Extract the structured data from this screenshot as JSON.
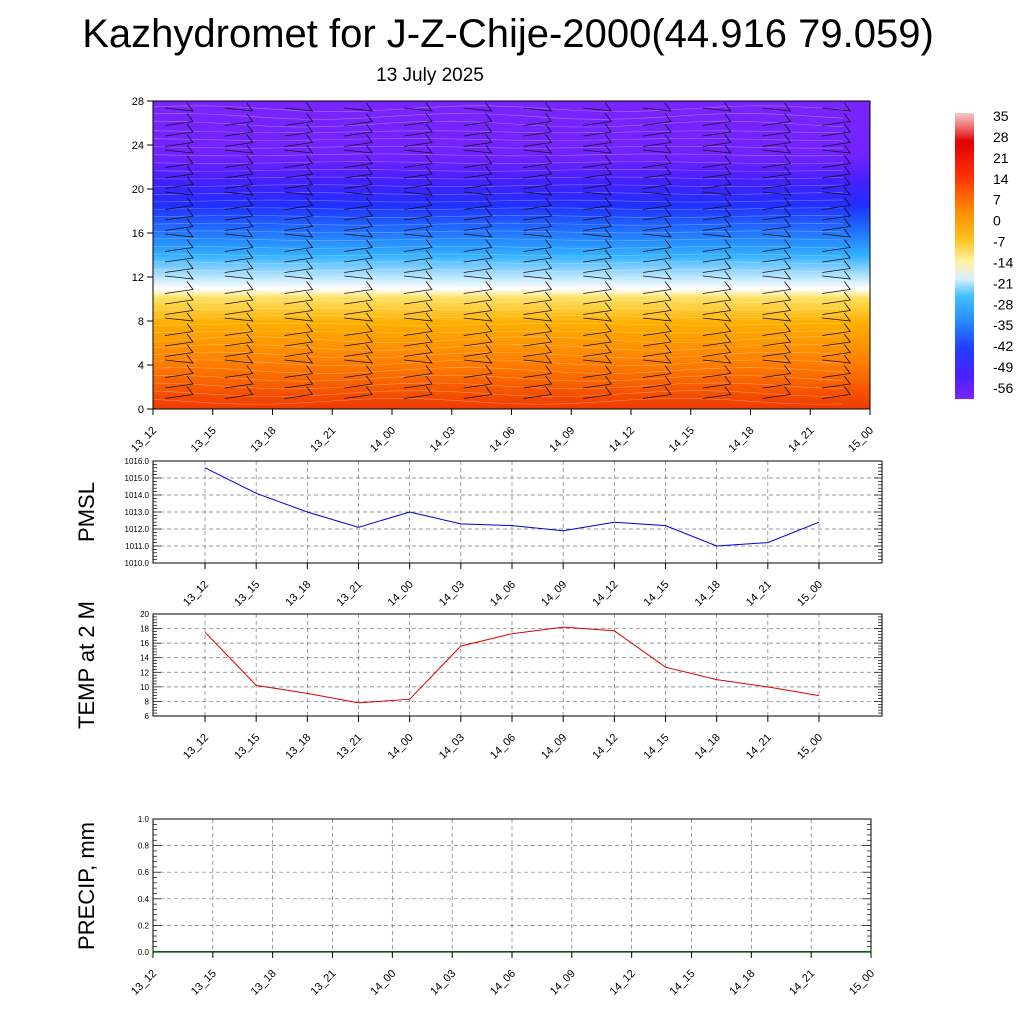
{
  "title": "Kazhydromet for J-Z-Chije-2000(44.916 79.059)",
  "subtitle": "13 July 2025",
  "colors": {
    "pmsl_line": "#0000dd",
    "temp_line": "#dd0000",
    "precip_line": "#006400"
  },
  "colorbar": {
    "labels": [
      "35",
      "28",
      "21",
      "14",
      "7",
      "0",
      "-7",
      "-14",
      "-21",
      "-28",
      "-35",
      "-42",
      "-49",
      "-56"
    ]
  },
  "chart_data": [
    {
      "type": "heatmap",
      "name": "upper-air-temperature-wind",
      "x_ticks": [
        "13_12",
        "13_15",
        "13_18",
        "13_21",
        "14_00",
        "14_03",
        "14_06",
        "14_09",
        "14_12",
        "14_15",
        "14_18",
        "14_21",
        "15_00"
      ],
      "y_ticks": [
        "0",
        "4",
        "8",
        "12",
        "16",
        "20",
        "24",
        "28"
      ],
      "ylim": [
        0,
        28
      ],
      "levels": [
        0,
        4,
        8,
        12,
        16,
        20,
        24,
        28
      ],
      "temperature_by_level": [
        28,
        20,
        10,
        -5,
        -30,
        -50,
        -58,
        -58
      ],
      "wind_barbs": true
    },
    {
      "type": "line",
      "ylabel": "PMSL",
      "x_ticks": [
        "13_12",
        "13_15",
        "13_18",
        "13_21",
        "14_00",
        "14_03",
        "14_06",
        "14_09",
        "14_12",
        "14_15",
        "14_18",
        "14_21",
        "15_00"
      ],
      "y_ticks": [
        "1010.0",
        "1011.0",
        "1012.0",
        "1013.0",
        "1014.0",
        "1015.0",
        "1016.0"
      ],
      "ylim": [
        1010.0,
        1016.0
      ],
      "values": [
        1015.6,
        1014.1,
        1013.0,
        1012.1,
        1013.0,
        1012.3,
        1012.2,
        1011.9,
        1012.4,
        1012.2,
        1011.0,
        1011.2,
        1012.4
      ],
      "grid": true
    },
    {
      "type": "line",
      "ylabel": "TEMP at 2 M",
      "x_ticks": [
        "13_12",
        "13_15",
        "13_18",
        "13_21",
        "14_00",
        "14_03",
        "14_06",
        "14_09",
        "14_12",
        "14_15",
        "14_18",
        "14_21",
        "15_00"
      ],
      "y_ticks": [
        "6",
        "8",
        "10",
        "12",
        "14",
        "16",
        "18",
        "20"
      ],
      "ylim": [
        6,
        20
      ],
      "values": [
        17.5,
        10.2,
        9.1,
        7.8,
        8.3,
        15.6,
        17.3,
        18.2,
        17.7,
        12.7,
        11.0,
        10.0,
        8.8
      ],
      "grid": true
    },
    {
      "type": "line",
      "ylabel": "PRECIP, mm",
      "x_ticks": [
        "13_12",
        "13_15",
        "13_18",
        "13_21",
        "14_00",
        "14_03",
        "14_06",
        "14_09",
        "14_12",
        "14_15",
        "14_18",
        "14_21",
        "15_00"
      ],
      "y_ticks": [
        "0.0",
        "0.2",
        "0.4",
        "0.6",
        "0.8",
        "1.0"
      ],
      "ylim": [
        0.0,
        1.0
      ],
      "values": [
        0,
        0,
        0,
        0,
        0,
        0,
        0,
        0,
        0,
        0,
        0,
        0,
        0
      ],
      "grid": true
    }
  ]
}
